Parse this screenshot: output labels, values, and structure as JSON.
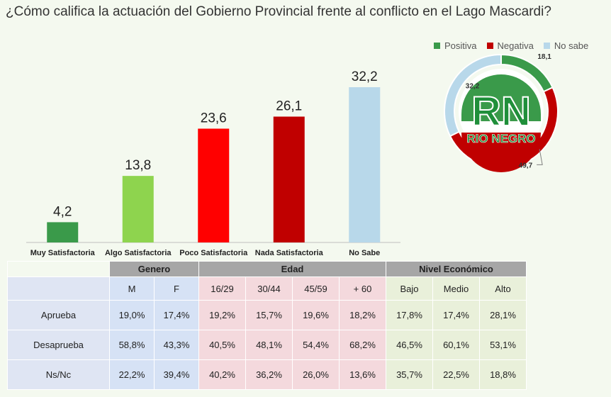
{
  "title": "¿Cómo califica la actuación del Gobierno Provincial frente al conflicto en el Lago Mascardi?",
  "chart_data": [
    {
      "type": "bar",
      "categories": [
        "Muy Satisfactoria",
        "Algo Satisfactoria",
        "Poco Satisfactoria",
        "Nada Satisfactoria",
        "No Sabe"
      ],
      "values": [
        4.2,
        13.8,
        23.6,
        26.1,
        32.2
      ],
      "value_labels": [
        "4,2",
        "13,8",
        "23,6",
        "26,1",
        "32,2"
      ],
      "colors": [
        "#3a9a4a",
        "#8ed44e",
        "#ff0000",
        "#c00000",
        "#b8d8ea"
      ],
      "ylim": [
        0,
        35
      ]
    },
    {
      "type": "pie",
      "style": "donut",
      "legend_position": "top",
      "labels": [
        "Positiva",
        "Negativa",
        "No sabe"
      ],
      "values": [
        18.1,
        49.7,
        32.2
      ],
      "value_labels": [
        "18,1",
        "49,7",
        "32,2"
      ],
      "colors": [
        "#3a9a4a",
        "#c00000",
        "#b8d8ea"
      ]
    },
    {
      "type": "table",
      "groups": [
        {
          "label": "Genero",
          "columns": [
            "M",
            "F"
          ]
        },
        {
          "label": "Edad",
          "columns": [
            "16/29",
            "30/44",
            "45/59",
            "+ 60"
          ]
        },
        {
          "label": "Nivel Económico",
          "columns": [
            "Bajo",
            "Medio",
            "Alto"
          ]
        }
      ],
      "rows": [
        {
          "label": "Aprueba",
          "values": [
            "19,0%",
            "17,4%",
            "19,2%",
            "15,7%",
            "19,6%",
            "18,2%",
            "17,8%",
            "17,4%",
            "28,1%"
          ]
        },
        {
          "label": "Desaprueba",
          "values": [
            "58,8%",
            "43,3%",
            "40,5%",
            "48,1%",
            "54,4%",
            "68,2%",
            "46,5%",
            "60,1%",
            "53,1%"
          ]
        },
        {
          "label": "Ns/Nc",
          "values": [
            "22,2%",
            "39,4%",
            "40,2%",
            "36,2%",
            "26,0%",
            "13,6%",
            "35,7%",
            "22,5%",
            "18,8%"
          ]
        }
      ]
    }
  ],
  "logo": {
    "text_main": "RN",
    "text_sub": "RIO NEGRO",
    "colors": {
      "green": "#3a9a4a",
      "red": "#c00000"
    }
  }
}
